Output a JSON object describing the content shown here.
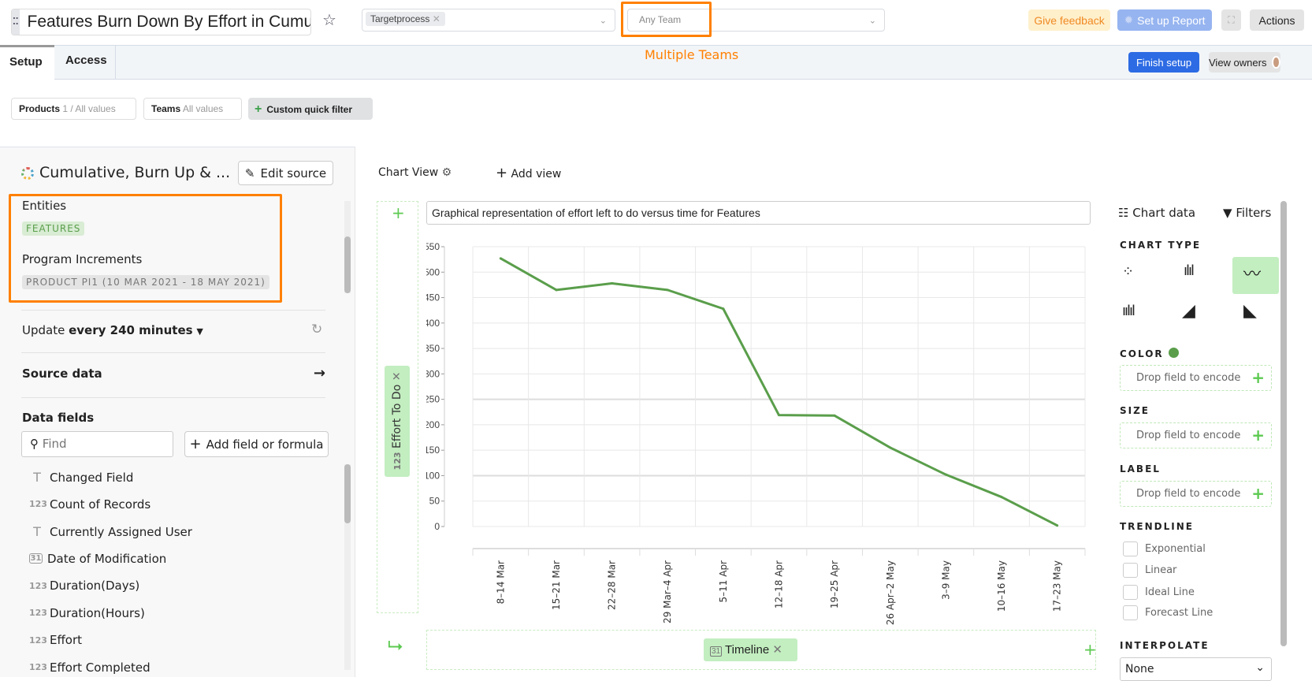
{
  "header": {
    "title": "Features Burn Down By Effort in Cumulative",
    "source_tag": "Targetprocess",
    "team_placeholder": "Any Team",
    "give_feedback": "Give feedback",
    "set_up_report": "Set up Report",
    "actions": "Actions"
  },
  "tabs": [
    {
      "label": "Setup",
      "active": true
    },
    {
      "label": "Access",
      "active": false
    }
  ],
  "annotation": "Multiple Teams",
  "tab_actions": {
    "finish_setup": "Finish setup",
    "view_owners": "View owners"
  },
  "filters": [
    {
      "label": "Products",
      "value": "1 / All values"
    },
    {
      "label": "Teams",
      "value": "All values"
    }
  ],
  "custom_filter": "Custom quick filter",
  "left": {
    "source_title": "Cumulative, Burn Up & ...",
    "edit_source": "Edit source",
    "entities_label": "Entities",
    "entities_tag": "FEATURES",
    "pi_label": "Program Increments",
    "pi_tag": "PRODUCT PI1 (10 MAR 2021 - 18 MAY 2021)",
    "update_prefix": "Update",
    "update_value": "every 240 minutes",
    "source_data": "Source data",
    "data_fields": "Data fields",
    "find_placeholder": "Find",
    "add_field": "Add field or formula",
    "fields": [
      {
        "type": "T",
        "name": "Changed Field"
      },
      {
        "type": "123",
        "name": "Count of Records"
      },
      {
        "type": "T",
        "name": "Currently Assigned User"
      },
      {
        "type": "31",
        "name": "Date of Modification"
      },
      {
        "type": "123",
        "name": "Duration(Days)"
      },
      {
        "type": "123",
        "name": "Duration(Hours)"
      },
      {
        "type": "123",
        "name": "Effort"
      },
      {
        "type": "123",
        "name": "Effort Completed"
      }
    ]
  },
  "main": {
    "chart_view": "Chart View",
    "add_view": "Add view",
    "chart_title": "Graphical representation of effort left to do versus time for Features",
    "y_field": "Effort To Do",
    "y_field_type": "123",
    "x_field": "Timeline",
    "x_field_type": "31"
  },
  "right": {
    "chart_data": "Chart data",
    "filters": "Filters",
    "chart_type_label": "CHART TYPE",
    "selected_chart_type": "line",
    "color_label": "COLOR",
    "color_value": "#5a9e4b",
    "size_label": "SIZE",
    "label_label": "LABEL",
    "drop_text": "Drop field to encode",
    "trendline_label": "TRENDLINE",
    "trendlines": [
      "Exponential",
      "Linear",
      "Ideal Line",
      "Forecast Line"
    ],
    "interpolate_label": "INTERPOLATE",
    "interpolate_value": "None"
  },
  "colors": {
    "accent": "#2d6be4",
    "annotation": "#ff8000",
    "line": "#5a9e4b",
    "pill": "#c3eec0"
  },
  "chart_data": {
    "type": "line",
    "title": "Graphical representation of effort left to do versus time for Features",
    "xlabel": "Timeline",
    "ylabel": "Effort To Do",
    "categories": [
      "8–14 Mar",
      "15–21 Mar",
      "22–28 Mar",
      "29 Mar–4 Apr",
      "5–11 Apr",
      "12–18 Apr",
      "19–25 Apr",
      "26 Apr–2 May",
      "3–9 May",
      "10–16 May",
      "17–23 May"
    ],
    "values": [
      527,
      465,
      478,
      465,
      428,
      219,
      218,
      155,
      102,
      58,
      2
    ],
    "ylim": [
      0,
      550
    ],
    "yticks": [
      0,
      50,
      100,
      150,
      200,
      250,
      300,
      350,
      400,
      450,
      500,
      550
    ],
    "grid": true
  }
}
